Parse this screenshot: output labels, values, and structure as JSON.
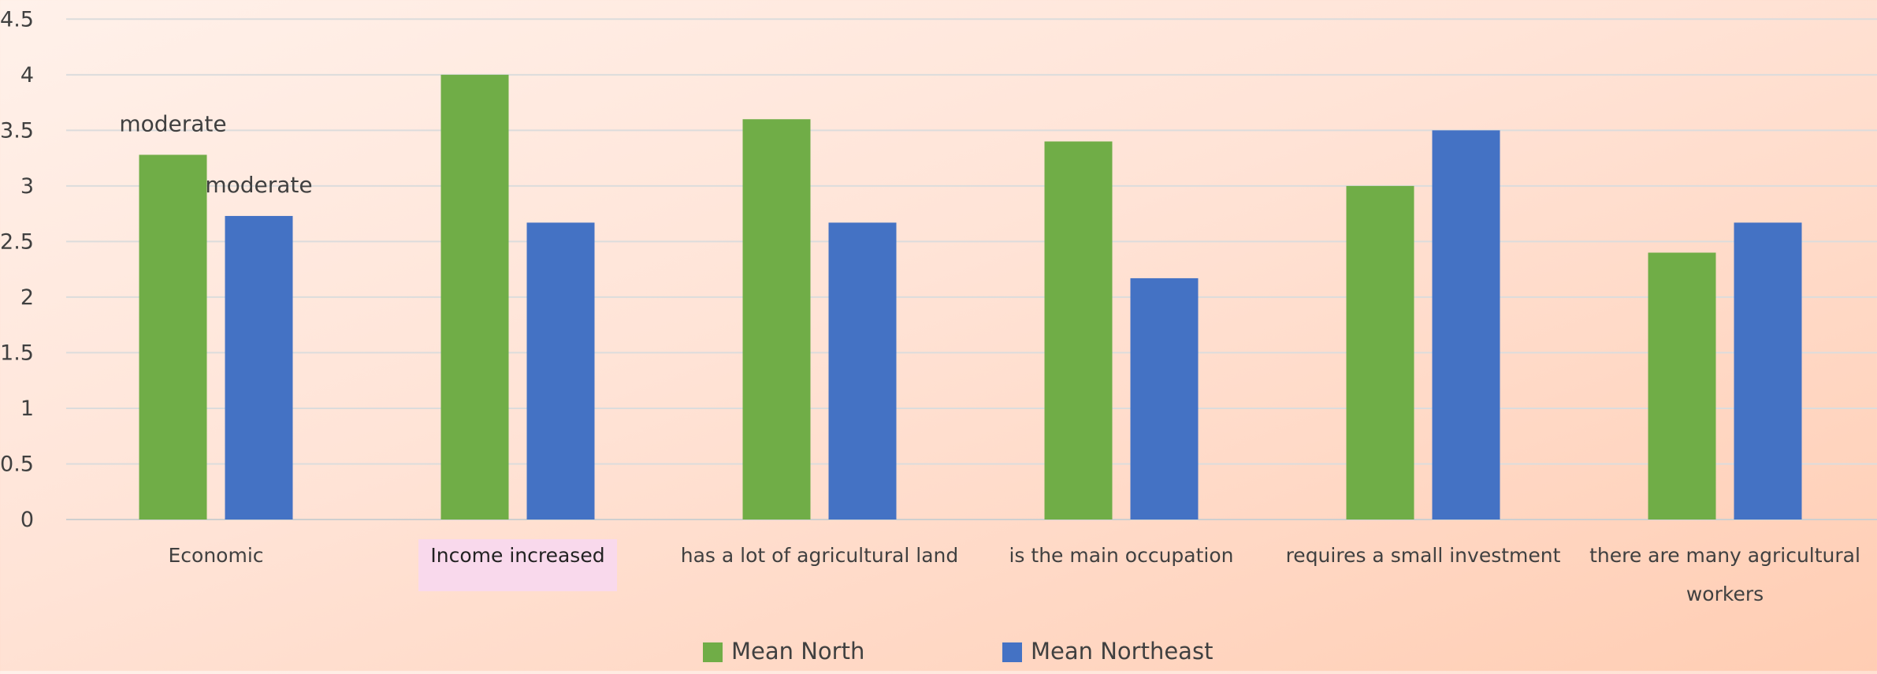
{
  "chart_data": {
    "type": "bar",
    "categories": [
      "Economic",
      "Income increased",
      "has a lot of agricultural land",
      "is the main occupation",
      "requires a small investment",
      "there are many agricultural workers"
    ],
    "series": [
      {
        "name": "Mean North",
        "color": "#70ad47",
        "values": [
          3.28,
          4.0,
          3.6,
          3.4,
          3.0,
          2.4
        ]
      },
      {
        "name": "Mean Northeast",
        "color": "#4472c4",
        "values": [
          2.73,
          2.67,
          2.67,
          2.17,
          3.5,
          2.67
        ]
      }
    ],
    "ylim": [
      0,
      4.5
    ],
    "yticks": [
      0,
      0.5,
      1,
      1.5,
      2,
      2.5,
      3,
      3.5,
      4,
      4.5
    ],
    "grid": true,
    "legend_position": "bottom",
    "data_labels": [
      {
        "series": 0,
        "category": 0,
        "text": "moderate"
      },
      {
        "series": 1,
        "category": 0,
        "text": "moderate"
      }
    ],
    "highlighted_category": 1,
    "highlight_color": "#f9d9ec"
  }
}
